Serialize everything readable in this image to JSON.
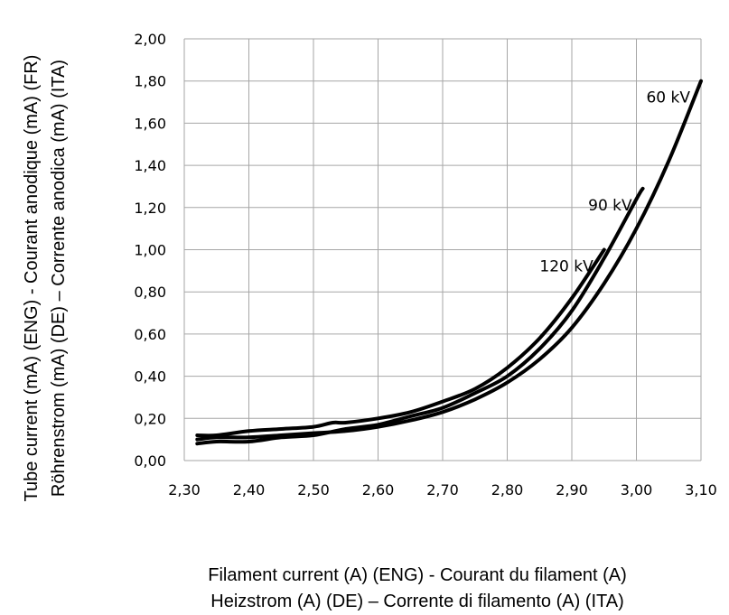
{
  "chart_data": {
    "type": "line",
    "xlabel": [
      "Filament current (A) (ENG) - Courant du filament (A)",
      "Heizstrom (A) (DE) – Corrente di filamento (A) (ITA)"
    ],
    "ylabel": [
      "Tube current (mA) (ENG) - Courant anodique (mA) (FR)",
      "Röhrenstrom (mA) (DE) – Corrente anodica (mA) (ITA)"
    ],
    "xlim": [
      2.3,
      3.1
    ],
    "ylim": [
      0.0,
      2.0
    ],
    "x_ticks": [
      2.3,
      2.4,
      2.5,
      2.6,
      2.7,
      2.8,
      2.9,
      3.0,
      3.1
    ],
    "x_tick_labels": [
      "2,30",
      "2,40",
      "2,50",
      "2,60",
      "2,70",
      "2,80",
      "2,90",
      "3,00",
      "3,10"
    ],
    "y_ticks": [
      0.0,
      0.2,
      0.4,
      0.6,
      0.8,
      1.0,
      1.2,
      1.4,
      1.6,
      1.8,
      2.0
    ],
    "y_tick_labels": [
      "0,00",
      "0,20",
      "0,40",
      "0,60",
      "0,80",
      "1,00",
      "1,20",
      "1,40",
      "1,60",
      "1,80",
      "2,00"
    ],
    "grid": true,
    "series": [
      {
        "name": "60 kV",
        "x": [
          2.32,
          2.35,
          2.4,
          2.45,
          2.5,
          2.55,
          2.6,
          2.65,
          2.7,
          2.75,
          2.8,
          2.85,
          2.9,
          2.95,
          3.0,
          3.05,
          3.1
        ],
        "y": [
          0.1,
          0.11,
          0.11,
          0.12,
          0.13,
          0.14,
          0.16,
          0.19,
          0.23,
          0.29,
          0.37,
          0.48,
          0.63,
          0.84,
          1.1,
          1.42,
          1.8
        ]
      },
      {
        "name": "90 kV",
        "x": [
          2.32,
          2.35,
          2.4,
          2.45,
          2.5,
          2.55,
          2.6,
          2.65,
          2.7,
          2.75,
          2.8,
          2.85,
          2.9,
          2.95,
          3.0,
          3.01
        ],
        "y": [
          0.08,
          0.09,
          0.09,
          0.11,
          0.12,
          0.15,
          0.17,
          0.21,
          0.25,
          0.32,
          0.4,
          0.53,
          0.71,
          0.96,
          1.24,
          1.29
        ]
      },
      {
        "name": "120 kV",
        "x": [
          2.32,
          2.35,
          2.4,
          2.45,
          2.5,
          2.53,
          2.55,
          2.6,
          2.65,
          2.7,
          2.75,
          2.8,
          2.85,
          2.9,
          2.95
        ],
        "y": [
          0.12,
          0.12,
          0.14,
          0.15,
          0.16,
          0.18,
          0.18,
          0.2,
          0.23,
          0.28,
          0.34,
          0.44,
          0.58,
          0.77,
          1.0
        ]
      }
    ]
  }
}
